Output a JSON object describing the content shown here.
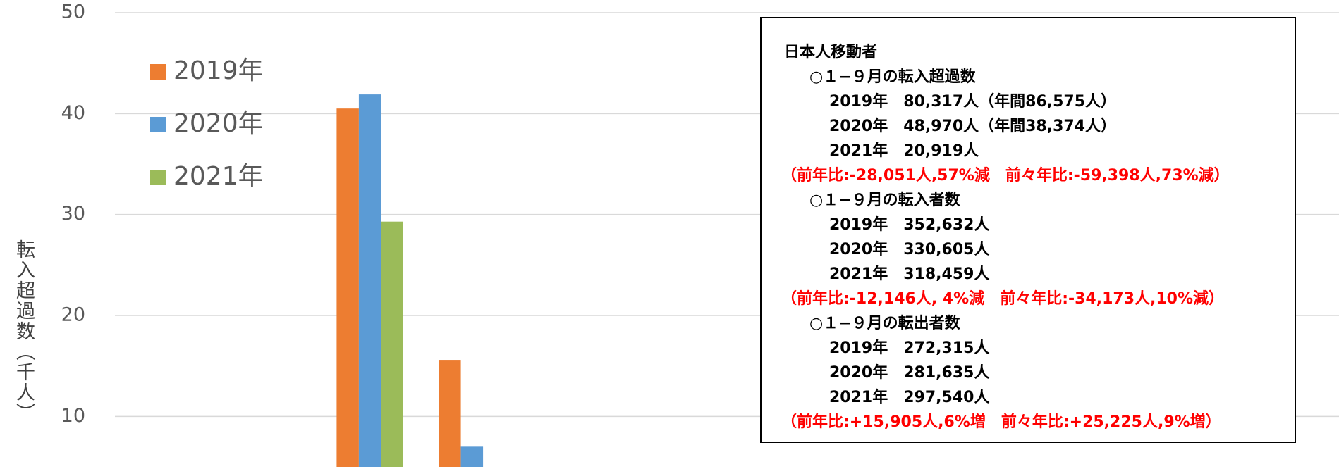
{
  "chart_data": {
    "type": "bar",
    "y_label": "転入超過数（千人）",
    "categories": [
      null,
      null,
      null,
      null,
      null,
      null,
      null,
      null,
      null,
      null,
      null,
      null
    ],
    "series": [
      {
        "name": "2019年",
        "color": "#ed7d31",
        "values": [
          null,
          null,
          40.5,
          15.6,
          null,
          null,
          null,
          null,
          null,
          null,
          null,
          null
        ]
      },
      {
        "name": "2020年",
        "color": "#5b9bd5",
        "values": [
          null,
          null,
          41.9,
          7.0,
          null,
          null,
          null,
          null,
          null,
          null,
          null,
          null
        ]
      },
      {
        "name": "2021年",
        "color": "#9bbb59",
        "values": [
          null,
          null,
          29.3,
          null,
          null,
          null,
          null,
          null,
          null,
          null,
          null,
          null
        ]
      }
    ],
    "ylim": [
      5,
      50
    ],
    "yticks": [
      10,
      20,
      30,
      40,
      50
    ],
    "grid": true,
    "legend": "top-left",
    "annotation": {
      "title": "日本人移動者",
      "lines": [
        "○１−９月の転入超過数",
        "2019年　80,317人（年間86,575人）",
        "2020年　48,970人（年間38,374人）",
        "2021年　20,919人",
        "（前年比:-28,051人,57%減　前々年比:-59,398人,73%減）",
        "○１−９月の転入者数",
        "2019年　352,632人",
        "2020年　330,605人",
        "2021年　318,459人",
        "（前年比:-12,146人, 4%減　前々年比:-34,173人,10%減）",
        "○１−９月の転出者数",
        "2019年　272,315人",
        "2020年　281,635人",
        "2021年　297,540人",
        "（前年比:+15,905人,6%増　前々年比:+25,225人,9%増）"
      ]
    }
  }
}
